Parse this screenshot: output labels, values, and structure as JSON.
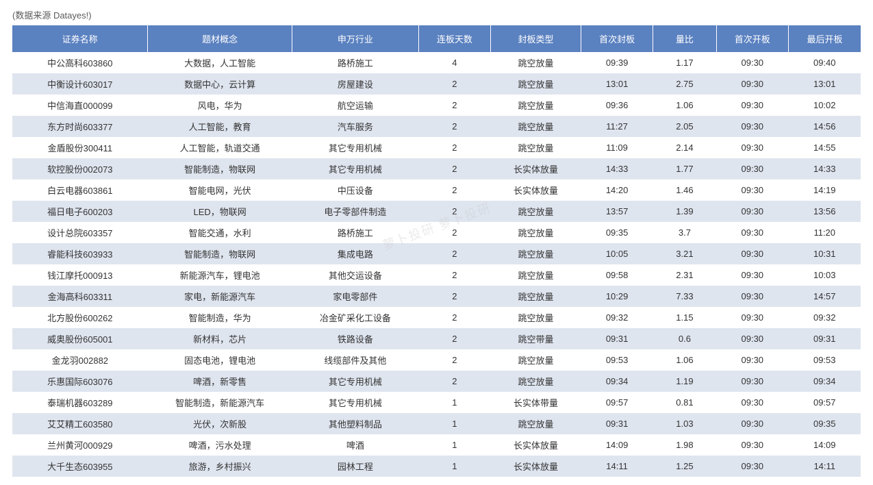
{
  "source_label": "(数据来源 Datayes!)",
  "watermark_text": "萝卜投研  萝卜投研",
  "table": {
    "header_bg": "#5a81c0",
    "header_fg": "#ffffff",
    "row_odd_bg": "#ffffff",
    "row_even_bg": "#dfe5ef",
    "text_color": "#333333",
    "columns": [
      {
        "key": "name",
        "label": "证券名称",
        "width": "15%"
      },
      {
        "key": "theme",
        "label": "题材概念",
        "width": "16%"
      },
      {
        "key": "industry",
        "label": "申万行业",
        "width": "14%"
      },
      {
        "key": "days",
        "label": "连板天数",
        "width": "8%"
      },
      {
        "key": "seal_type",
        "label": "封板类型",
        "width": "10%"
      },
      {
        "key": "first_seal",
        "label": "首次封板",
        "width": "8%"
      },
      {
        "key": "vol_ratio",
        "label": "量比",
        "width": "7%"
      },
      {
        "key": "first_open",
        "label": "首次开板",
        "width": "8%"
      },
      {
        "key": "last_open",
        "label": "最后开板",
        "width": "8%"
      }
    ],
    "rows": [
      {
        "name": "中公高科603860",
        "theme": "大数据，人工智能",
        "industry": "路桥施工",
        "days": "4",
        "seal_type": "跳空放量",
        "first_seal": "09:39",
        "vol_ratio": "1.17",
        "first_open": "09:30",
        "last_open": "09:40"
      },
      {
        "name": "中衡设计603017",
        "theme": "数据中心，云计算",
        "industry": "房屋建设",
        "days": "2",
        "seal_type": "跳空放量",
        "first_seal": "13:01",
        "vol_ratio": "2.75",
        "first_open": "09:30",
        "last_open": "13:01"
      },
      {
        "name": "中信海直000099",
        "theme": "风电，华为",
        "industry": "航空运输",
        "days": "2",
        "seal_type": "跳空放量",
        "first_seal": "09:36",
        "vol_ratio": "1.06",
        "first_open": "09:30",
        "last_open": "10:02"
      },
      {
        "name": "东方时尚603377",
        "theme": "人工智能，教育",
        "industry": "汽车服务",
        "days": "2",
        "seal_type": "跳空放量",
        "first_seal": "11:27",
        "vol_ratio": "2.05",
        "first_open": "09:30",
        "last_open": "14:56"
      },
      {
        "name": "金盾股份300411",
        "theme": "人工智能，轨道交通",
        "industry": "其它专用机械",
        "days": "2",
        "seal_type": "跳空放量",
        "first_seal": "11:09",
        "vol_ratio": "2.14",
        "first_open": "09:30",
        "last_open": "14:55"
      },
      {
        "name": "软控股份002073",
        "theme": "智能制造，物联网",
        "industry": "其它专用机械",
        "days": "2",
        "seal_type": "长实体放量",
        "first_seal": "14:33",
        "vol_ratio": "1.77",
        "first_open": "09:30",
        "last_open": "14:33"
      },
      {
        "name": "白云电器603861",
        "theme": "智能电网，光伏",
        "industry": "中压设备",
        "days": "2",
        "seal_type": "长实体放量",
        "first_seal": "14:20",
        "vol_ratio": "1.46",
        "first_open": "09:30",
        "last_open": "14:19"
      },
      {
        "name": "福日电子600203",
        "theme": "LED，物联网",
        "industry": "电子零部件制造",
        "days": "2",
        "seal_type": "跳空放量",
        "first_seal": "13:57",
        "vol_ratio": "1.39",
        "first_open": "09:30",
        "last_open": "13:56"
      },
      {
        "name": "设计总院603357",
        "theme": "智能交通，水利",
        "industry": "路桥施工",
        "days": "2",
        "seal_type": "跳空放量",
        "first_seal": "09:35",
        "vol_ratio": "3.7",
        "first_open": "09:30",
        "last_open": "11:20"
      },
      {
        "name": "睿能科技603933",
        "theme": "智能制造，物联网",
        "industry": "集成电路",
        "days": "2",
        "seal_type": "跳空放量",
        "first_seal": "10:05",
        "vol_ratio": "3.21",
        "first_open": "09:30",
        "last_open": "10:31"
      },
      {
        "name": "钱江摩托000913",
        "theme": "新能源汽车，锂电池",
        "industry": "其他交运设备",
        "days": "2",
        "seal_type": "跳空放量",
        "first_seal": "09:58",
        "vol_ratio": "2.31",
        "first_open": "09:30",
        "last_open": "10:03"
      },
      {
        "name": "金海高科603311",
        "theme": "家电，新能源汽车",
        "industry": "家电零部件",
        "days": "2",
        "seal_type": "跳空放量",
        "first_seal": "10:29",
        "vol_ratio": "7.33",
        "first_open": "09:30",
        "last_open": "14:57"
      },
      {
        "name": "北方股份600262",
        "theme": "智能制造，华为",
        "industry": "冶金矿采化工设备",
        "days": "2",
        "seal_type": "跳空放量",
        "first_seal": "09:32",
        "vol_ratio": "1.15",
        "first_open": "09:30",
        "last_open": "09:32"
      },
      {
        "name": "威奥股份605001",
        "theme": "新材料，芯片",
        "industry": "铁路设备",
        "days": "2",
        "seal_type": "跳空带量",
        "first_seal": "09:31",
        "vol_ratio": "0.6",
        "first_open": "09:30",
        "last_open": "09:31"
      },
      {
        "name": "金龙羽002882",
        "theme": "固态电池，锂电池",
        "industry": "线缆部件及其他",
        "days": "2",
        "seal_type": "跳空放量",
        "first_seal": "09:53",
        "vol_ratio": "1.06",
        "first_open": "09:30",
        "last_open": "09:53"
      },
      {
        "name": "乐惠国际603076",
        "theme": "啤酒，新零售",
        "industry": "其它专用机械",
        "days": "2",
        "seal_type": "跳空放量",
        "first_seal": "09:34",
        "vol_ratio": "1.19",
        "first_open": "09:30",
        "last_open": "09:34"
      },
      {
        "name": "泰瑞机器603289",
        "theme": "智能制造，新能源汽车",
        "industry": "其它专用机械",
        "days": "1",
        "seal_type": "长实体带量",
        "first_seal": "09:57",
        "vol_ratio": "0.81",
        "first_open": "09:30",
        "last_open": "09:57"
      },
      {
        "name": "艾艾精工603580",
        "theme": "光伏，次新股",
        "industry": "其他塑料制品",
        "days": "1",
        "seal_type": "跳空放量",
        "first_seal": "09:31",
        "vol_ratio": "1.03",
        "first_open": "09:30",
        "last_open": "09:35"
      },
      {
        "name": "兰州黄河000929",
        "theme": "啤酒，污水处理",
        "industry": "啤酒",
        "days": "1",
        "seal_type": "长实体放量",
        "first_seal": "14:09",
        "vol_ratio": "1.98",
        "first_open": "09:30",
        "last_open": "14:09"
      },
      {
        "name": "大千生态603955",
        "theme": "旅游，乡村振兴",
        "industry": "园林工程",
        "days": "1",
        "seal_type": "长实体放量",
        "first_seal": "14:11",
        "vol_ratio": "1.25",
        "first_open": "09:30",
        "last_open": "14:11"
      }
    ]
  }
}
